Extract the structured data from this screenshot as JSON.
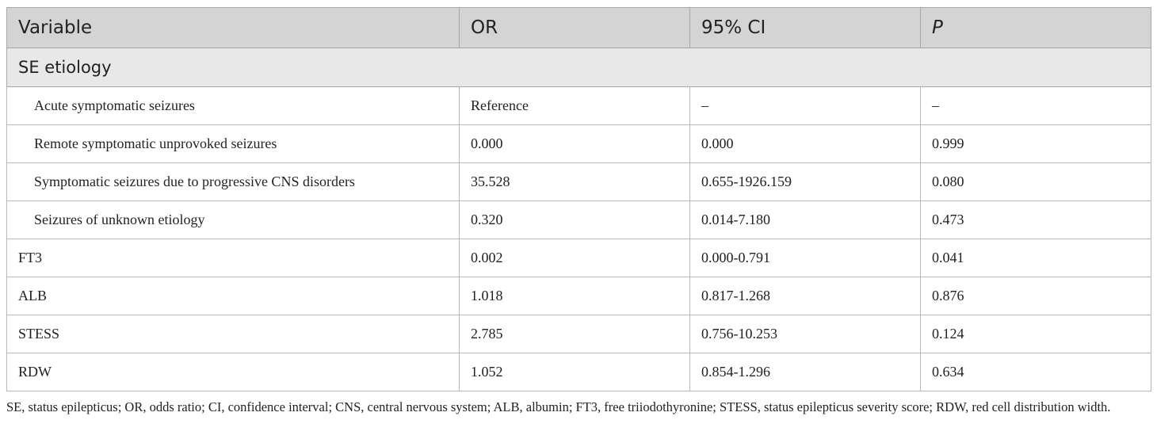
{
  "table": {
    "headers": [
      "Variable",
      "OR",
      "95% CI",
      "P"
    ],
    "group_label": "SE etiology",
    "sub_rows": [
      [
        "Acute symptomatic seizures",
        "Reference",
        "–",
        "–"
      ],
      [
        "Remote symptomatic unprovoked seizures",
        "0.000",
        "0.000",
        "0.999"
      ],
      [
        "Symptomatic seizures due to progressive CNS disorders",
        "35.528",
        "0.655-1926.159",
        "0.080"
      ],
      [
        "Seizures of unknown etiology",
        "0.320",
        "0.014-7.180",
        "0.473"
      ]
    ],
    "rows": [
      [
        "FT3",
        "0.002",
        "0.000-0.791",
        "0.041"
      ],
      [
        "ALB",
        "1.018",
        "0.817-1.268",
        "0.876"
      ],
      [
        "STESS",
        "2.785",
        "0.756-10.253",
        "0.124"
      ],
      [
        "RDW",
        "1.052",
        "0.854-1.296",
        "0.634"
      ]
    ]
  },
  "footnote": "SE, status epilepticus; OR, odds ratio; CI, confidence interval; CNS, central nervous system; ALB, albumin; FT3, free triiodothyronine; STESS, status epilepticus severity score; RDW, red cell distribution width."
}
